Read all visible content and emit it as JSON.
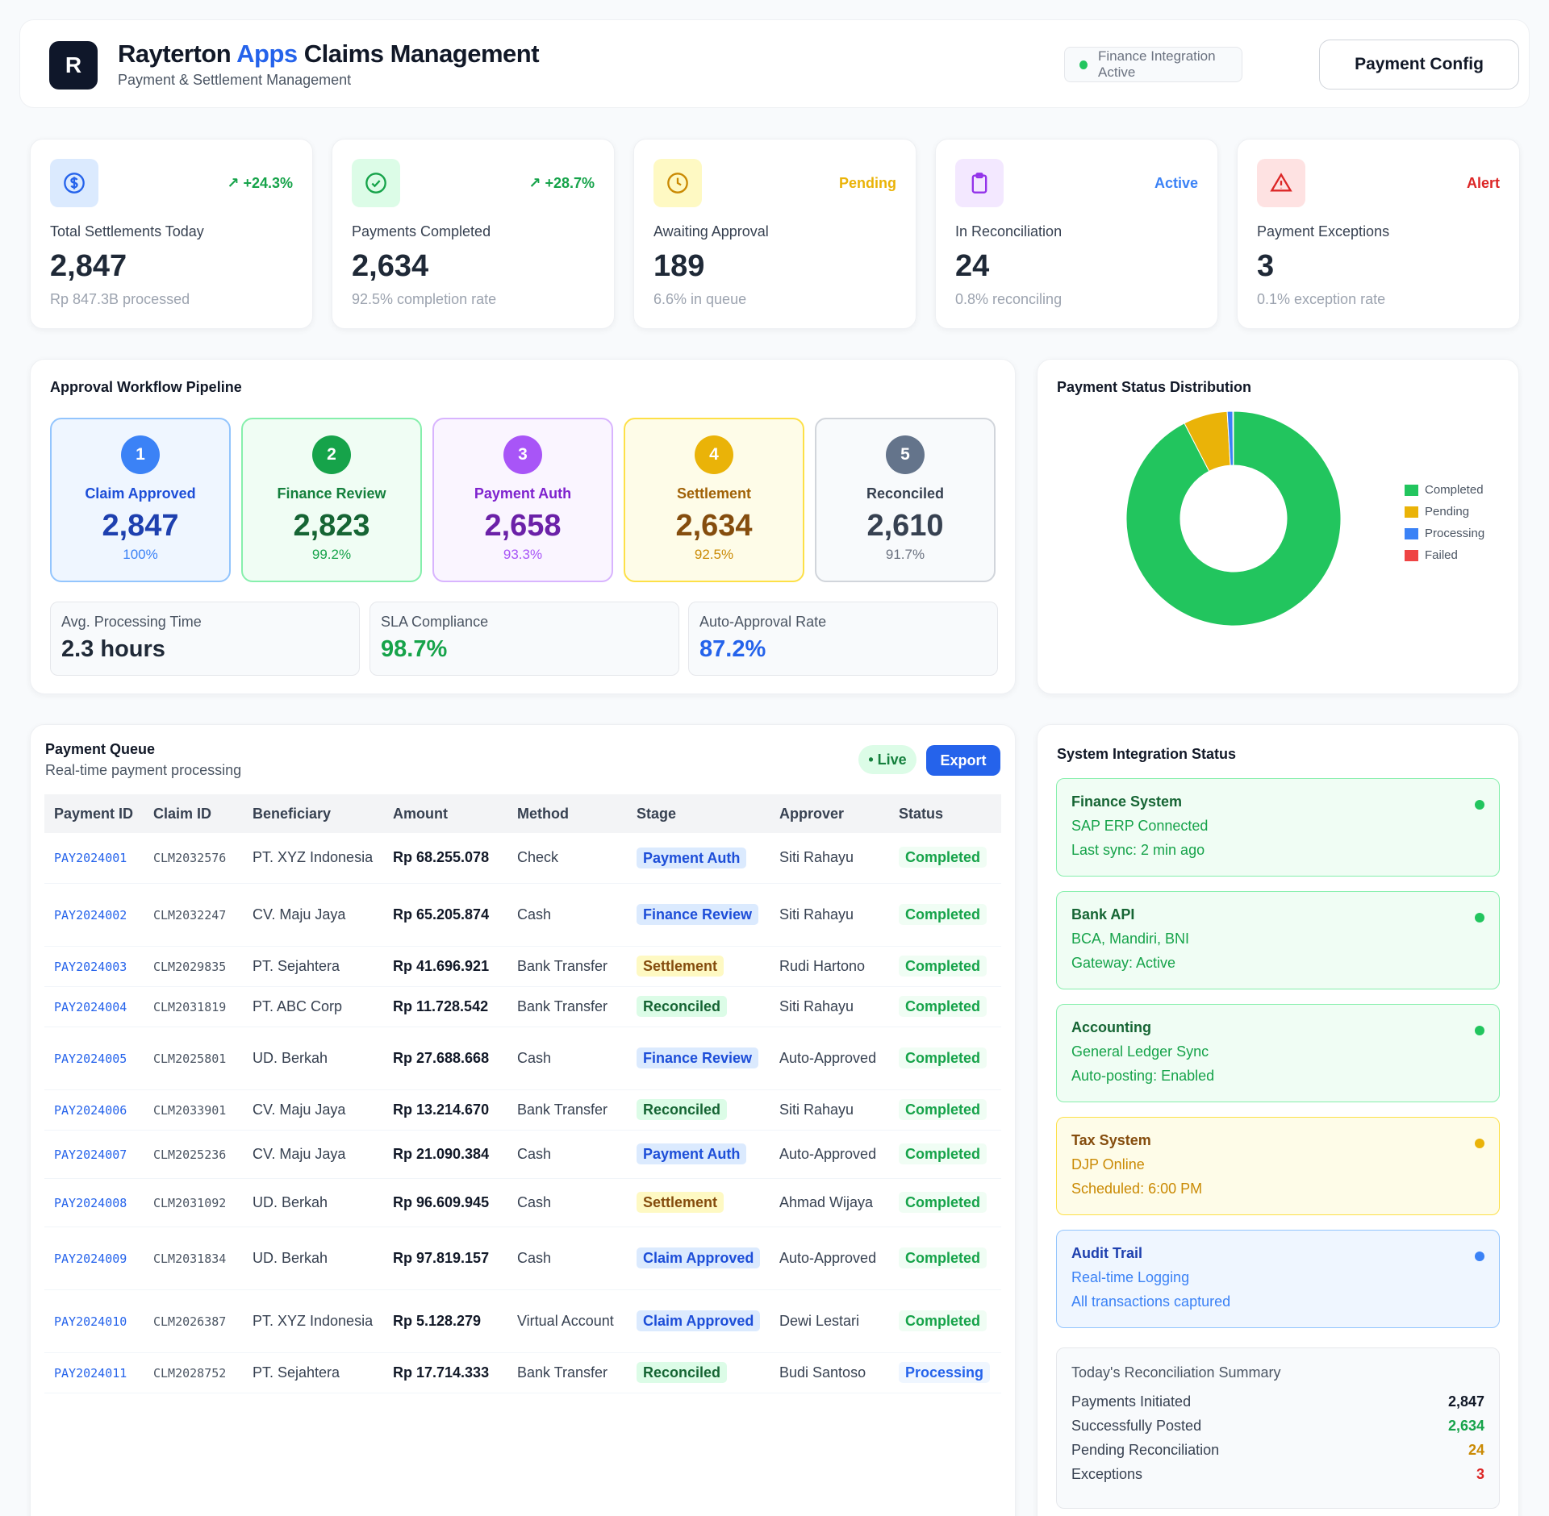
{
  "header": {
    "logo_letter": "R",
    "title_prefix": "Rayterton",
    "title_accent": "Apps",
    "title_suffix": "Claims Management",
    "subtitle": "Payment & Settlement Management",
    "integration_status": "Finance Integration Active",
    "config_button": "Payment Config"
  },
  "stats": [
    {
      "icon": "dollar-icon",
      "tag": "+24.3%",
      "label": "Total Settlements Today",
      "value": "2,847",
      "sub": "Rp 847.3B processed"
    },
    {
      "icon": "check-circle-icon",
      "tag": "+28.7%",
      "label": "Payments Completed",
      "value": "2,634",
      "sub": "92.5% completion rate"
    },
    {
      "icon": "clock-icon",
      "tag": "Pending",
      "label": "Awaiting Approval",
      "value": "189",
      "sub": "6.6% in queue"
    },
    {
      "icon": "clipboard-icon",
      "tag": "Active",
      "label": "In Reconciliation",
      "value": "24",
      "sub": "0.8% reconciling"
    },
    {
      "icon": "alert-triangle-icon",
      "tag": "Alert",
      "label": "Payment Exceptions",
      "value": "3",
      "sub": "0.1% exception rate"
    }
  ],
  "pipeline": {
    "title": "Approval Workflow Pipeline",
    "stages": [
      {
        "num": "1",
        "name": "Claim Approved",
        "value": "2,847",
        "pct": "100%"
      },
      {
        "num": "2",
        "name": "Finance Review",
        "value": "2,823",
        "pct": "99.2%"
      },
      {
        "num": "3",
        "name": "Payment Auth",
        "value": "2,658",
        "pct": "93.3%"
      },
      {
        "num": "4",
        "name": "Settlement",
        "value": "2,634",
        "pct": "92.5%"
      },
      {
        "num": "5",
        "name": "Reconciled",
        "value": "2,610",
        "pct": "91.7%"
      }
    ],
    "metrics": [
      {
        "label": "Avg. Processing Time",
        "value": "2.3 hours"
      },
      {
        "label": "SLA Compliance",
        "value": "98.7%"
      },
      {
        "label": "Auto-Approval Rate",
        "value": "87.2%"
      }
    ]
  },
  "chart_data": {
    "type": "pie",
    "title": "Payment Status Distribution",
    "categories": [
      "Completed",
      "Pending",
      "Processing",
      "Failed"
    ],
    "values": [
      2634,
      189,
      24,
      3
    ],
    "colors": [
      "#22c55e",
      "#eab308",
      "#3b82f6",
      "#ef4444"
    ],
    "donut": true,
    "legend": "right"
  },
  "queue": {
    "title": "Payment Queue",
    "subtitle": "Real-time payment processing",
    "live_label": "• Live",
    "export_label": "Export",
    "columns": [
      "Payment ID",
      "Claim ID",
      "Beneficiary",
      "Amount",
      "Method",
      "Stage",
      "Approver",
      "Status"
    ],
    "rows": [
      {
        "pid": "PAY2024001",
        "cid": "CLM2032576",
        "ben": "PT. XYZ Indonesia",
        "amt": "Rp 68.255.078",
        "method": "Check",
        "stage": "Payment Auth",
        "approver": "Siti Rahayu",
        "status": "Completed"
      },
      {
        "pid": "PAY2024002",
        "cid": "CLM2032247",
        "ben": "CV. Maju Jaya",
        "amt": "Rp 65.205.874",
        "method": "Cash",
        "stage": "Finance Review",
        "approver": "Siti Rahayu",
        "status": "Completed"
      },
      {
        "pid": "PAY2024003",
        "cid": "CLM2029835",
        "ben": "PT. Sejahtera",
        "amt": "Rp 41.696.921",
        "method": "Bank Transfer",
        "stage": "Settlement",
        "approver": "Rudi Hartono",
        "status": "Completed"
      },
      {
        "pid": "PAY2024004",
        "cid": "CLM2031819",
        "ben": "PT. ABC Corp",
        "amt": "Rp 11.728.542",
        "method": "Bank Transfer",
        "stage": "Reconciled",
        "approver": "Siti Rahayu",
        "status": "Completed"
      },
      {
        "pid": "PAY2024005",
        "cid": "CLM2025801",
        "ben": "UD. Berkah",
        "amt": "Rp 27.688.668",
        "method": "Cash",
        "stage": "Finance Review",
        "approver": "Auto-Approved",
        "status": "Completed"
      },
      {
        "pid": "PAY2024006",
        "cid": "CLM2033901",
        "ben": "CV. Maju Jaya",
        "amt": "Rp 13.214.670",
        "method": "Bank Transfer",
        "stage": "Reconciled",
        "approver": "Siti Rahayu",
        "status": "Completed"
      },
      {
        "pid": "PAY2024007",
        "cid": "CLM2025236",
        "ben": "CV. Maju Jaya",
        "amt": "Rp 21.090.384",
        "method": "Cash",
        "stage": "Payment Auth",
        "approver": "Auto-Approved",
        "status": "Completed"
      },
      {
        "pid": "PAY2024008",
        "cid": "CLM2031092",
        "ben": "UD. Berkah",
        "amt": "Rp 96.609.945",
        "method": "Cash",
        "stage": "Settlement",
        "approver": "Ahmad Wijaya",
        "status": "Completed"
      },
      {
        "pid": "PAY2024009",
        "cid": "CLM2031834",
        "ben": "UD. Berkah",
        "amt": "Rp 97.819.157",
        "method": "Cash",
        "stage": "Claim Approved",
        "approver": "Auto-Approved",
        "status": "Completed"
      },
      {
        "pid": "PAY2024010",
        "cid": "CLM2026387",
        "ben": "PT. XYZ Indonesia",
        "amt": "Rp 5.128.279",
        "method": "Virtual Account",
        "stage": "Claim Approved",
        "approver": "Dewi Lestari",
        "status": "Completed"
      },
      {
        "pid": "PAY2024011",
        "cid": "CLM2028752",
        "ben": "PT. Sejahtera",
        "amt": "Rp 17.714.333",
        "method": "Bank Transfer",
        "stage": "Reconciled",
        "approver": "Budi Santoso",
        "status": "Processing"
      }
    ]
  },
  "integrations": {
    "title": "System Integration Status",
    "items": [
      {
        "name": "Finance System",
        "line1": "SAP ERP Connected",
        "line2": "Last sync: 2 min ago",
        "tone": "green"
      },
      {
        "name": "Bank API",
        "line1": "BCA, Mandiri, BNI",
        "line2": "Gateway: Active",
        "tone": "green"
      },
      {
        "name": "Accounting",
        "line1": "General Ledger Sync",
        "line2": "Auto-posting: Enabled",
        "tone": "green"
      },
      {
        "name": "Tax System",
        "line1": "DJP Online",
        "line2": "Scheduled: 6:00 PM",
        "tone": "yellow"
      },
      {
        "name": "Audit Trail",
        "line1": "Real-time Logging",
        "line2": "All transactions captured",
        "tone": "blue"
      }
    ]
  },
  "reconciliation": {
    "title": "Today's Reconciliation Summary",
    "rows": [
      {
        "label": "Payments Initiated",
        "value": "2,847"
      },
      {
        "label": "Successfully Posted",
        "value": "2,634"
      },
      {
        "label": "Pending Reconciliation",
        "value": "24"
      },
      {
        "label": "Exceptions",
        "value": "3"
      }
    ]
  }
}
